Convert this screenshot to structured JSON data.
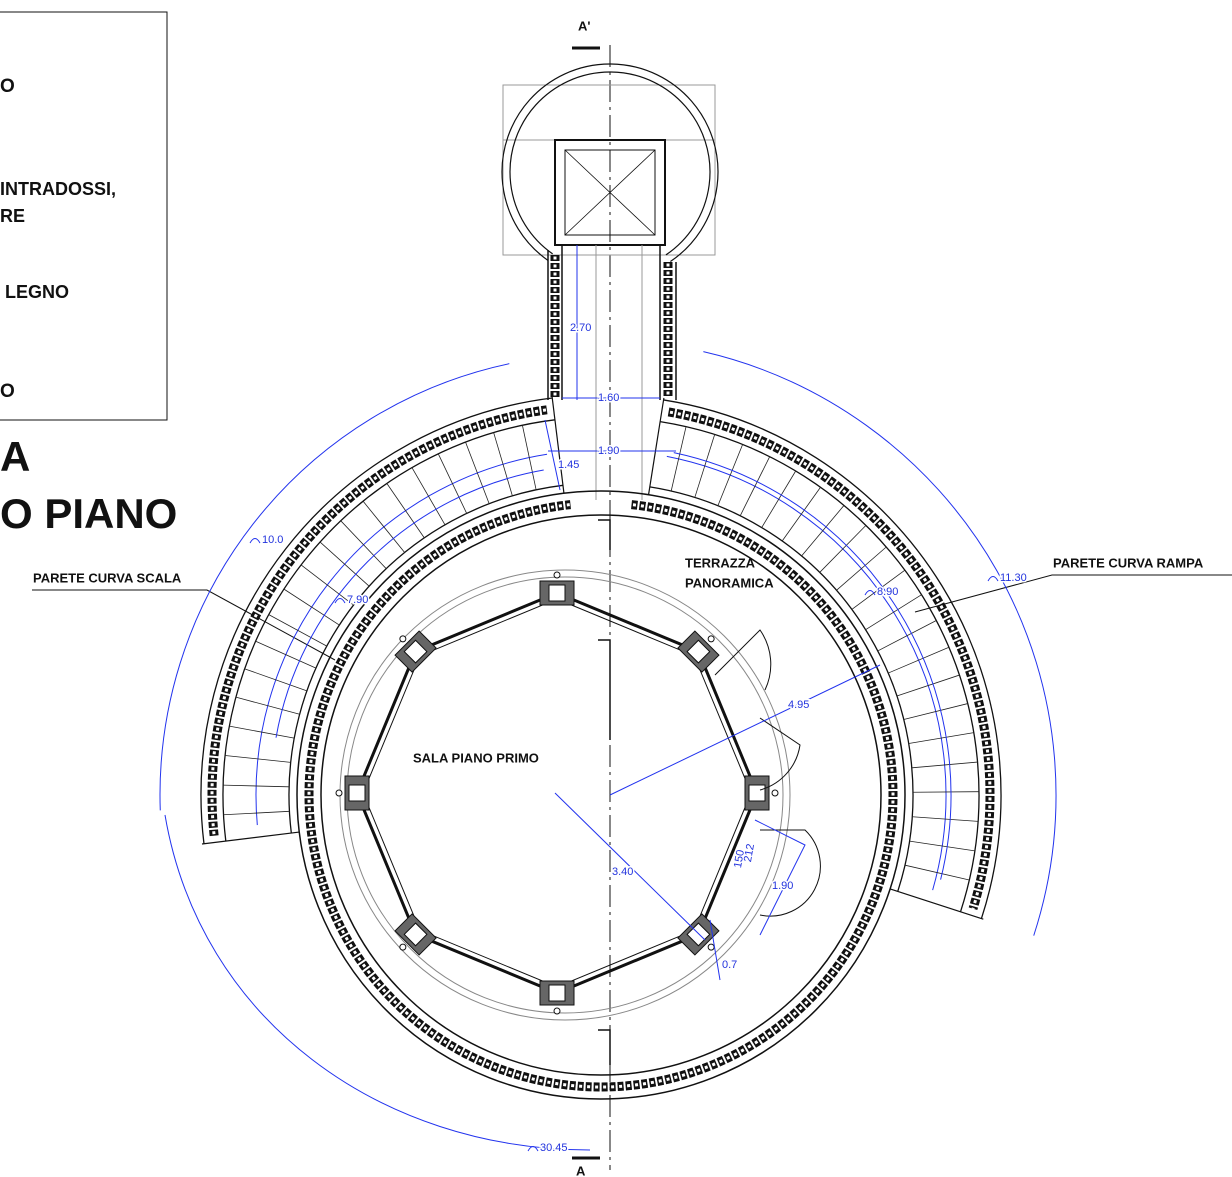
{
  "legend": {
    "lines": [
      "O",
      "INTRADOSSI,",
      "RE",
      "LEGNO",
      "O"
    ]
  },
  "title": {
    "lines": [
      "A",
      "O PIANO"
    ]
  },
  "section_marks": {
    "top": "A'",
    "bottom": "A"
  },
  "labels": {
    "stair_wall": "PARETE CURVA SCALA",
    "ramp_wall": "PARETE CURVA RAMPA",
    "terrace": {
      "lines": [
        "TERRAZZA",
        "PANORAMICA"
      ]
    },
    "room": "SALA PIANO PRIMO"
  },
  "dimensions": [
    "2.70",
    "1.60",
    "1.90",
    "1.45",
    "10.0",
    "7.90",
    "8.90",
    "11.30",
    "4.95",
    "3.40",
    "1.90",
    "0.7",
    "30.45",
    "212",
    "150"
  ]
}
